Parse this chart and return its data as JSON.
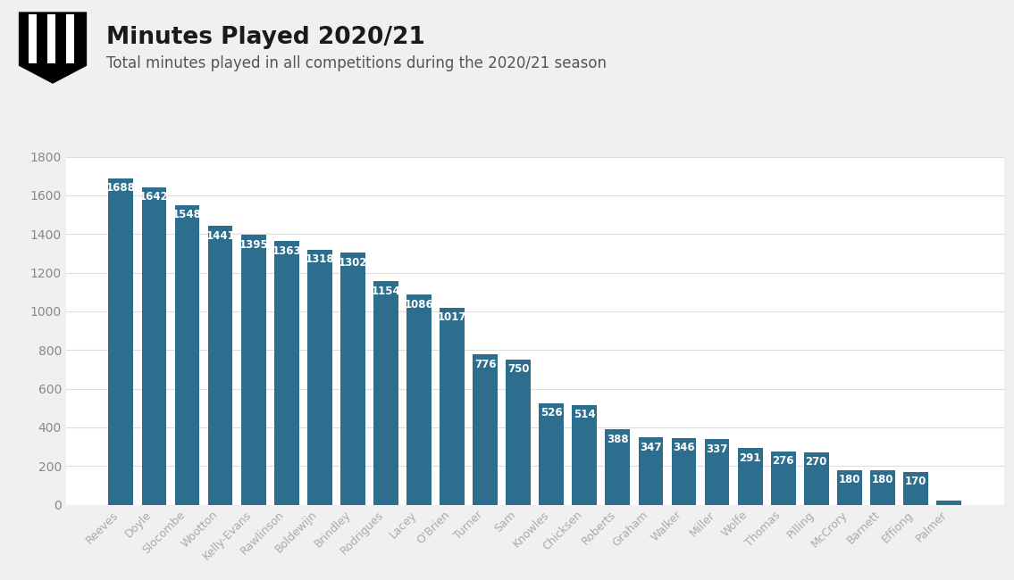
{
  "title": "Minutes Played 2020/21",
  "subtitle": "Total minutes played in all competitions during the 2020/21 season",
  "categories": [
    "Reeves",
    "Doyle",
    "Slocombe",
    "Wootton",
    "Kelly-Evans",
    "Rawlinson",
    "Boldewijn",
    "Brindley",
    "Rodrigues",
    "Lacey",
    "O'Brien",
    "Turner",
    "Sam",
    "Knowles",
    "Chicksen",
    "Roberts",
    "Graham",
    "Walker",
    "Miller",
    "Wolfe",
    "Thomas",
    "Pilling",
    "McCrory",
    "Barnett",
    "Effiong",
    "Palmer"
  ],
  "values": [
    1688,
    1642,
    1548,
    1441,
    1395,
    1363,
    1318,
    1302,
    1154,
    1086,
    1017,
    776,
    750,
    526,
    514,
    388,
    347,
    346,
    337,
    291,
    276,
    270,
    180,
    180,
    170,
    22
  ],
  "bar_color": "#2d6e8e",
  "label_color": "#ffffff",
  "background_color": "#f0f0f0",
  "plot_background_color": "#ffffff",
  "grid_color": "#dddddd",
  "title_color": "#1a1a1a",
  "subtitle_color": "#555555",
  "xtick_color": "#aaaaaa",
  "ytick_color": "#888888",
  "ylim": [
    0,
    1800
  ],
  "yticks": [
    0,
    200,
    400,
    600,
    800,
    1000,
    1200,
    1400,
    1600,
    1800
  ],
  "title_fontsize": 19,
  "subtitle_fontsize": 12,
  "label_fontsize": 8.5,
  "ytick_fontsize": 10,
  "xtick_fontsize": 9
}
